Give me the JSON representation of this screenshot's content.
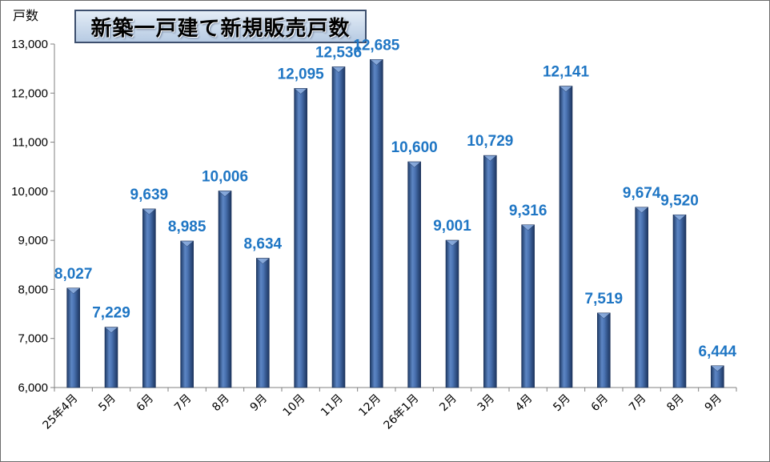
{
  "chart_data": {
    "type": "bar",
    "title": "新築一戸建て新規販売戸数",
    "ylabel": "戸数",
    "xlabel": "",
    "ylim": [
      6000,
      13000
    ],
    "yticks": [
      "6,000",
      "7,000",
      "8,000",
      "9,000",
      "10,000",
      "11,000",
      "12,000",
      "13,000"
    ],
    "ytick_values": [
      6000,
      7000,
      8000,
      9000,
      10000,
      11000,
      12000,
      13000
    ],
    "grid": false,
    "legend": "none",
    "bar_color": "#3a5f99",
    "label_color": "#1f76c4",
    "categories": [
      "25年4月",
      "5月",
      "6月",
      "7月",
      "8月",
      "9月",
      "10月",
      "11月",
      "12月",
      "26年1月",
      "2月",
      "3月",
      "4月",
      "5月",
      "6月",
      "7月",
      "8月",
      "9月"
    ],
    "values": [
      8027,
      7229,
      9639,
      8985,
      10006,
      8634,
      12095,
      12536,
      12685,
      10600,
      9001,
      10729,
      9316,
      12141,
      7519,
      9674,
      9520,
      6444
    ],
    "value_labels": [
      "8,027",
      "7,229",
      "9,639",
      "8,985",
      "10,006",
      "8,634",
      "12,095",
      "12,536",
      "12,685",
      "10,600",
      "9,001",
      "10,729",
      "9,316",
      "12,141",
      "7,519",
      "9,674",
      "9,520",
      "6,444"
    ]
  }
}
